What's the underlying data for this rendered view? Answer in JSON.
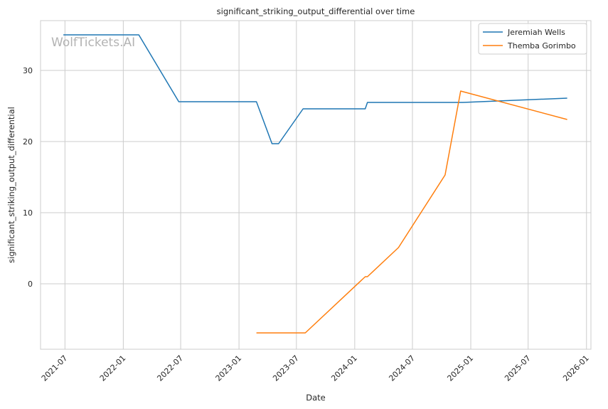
{
  "chart_data": {
    "type": "line",
    "title": "significant_striking_output_differential over time",
    "xlabel": "Date",
    "ylabel": "significant_striking_output_differential",
    "watermark": "WolfTickets.AI",
    "grid": true,
    "legend_position": "top-right",
    "xlim": [
      "2021-04-15",
      "2026-01-15"
    ],
    "ylim": [
      -9.2,
      37.0
    ],
    "x_ticks": [
      "2021-07-01",
      "2022-01-01",
      "2022-07-01",
      "2023-01-01",
      "2023-07-01",
      "2024-01-01",
      "2024-07-01",
      "2025-01-01",
      "2025-07-01",
      "2026-01-01"
    ],
    "x_tick_labels": [
      "2021-07",
      "2022-01",
      "2022-07",
      "2023-01",
      "2023-07",
      "2024-01",
      "2024-07",
      "2025-01",
      "2025-07",
      "2026-01"
    ],
    "y_ticks": [
      0,
      10,
      20,
      30
    ],
    "y_tick_labels": [
      "0",
      "10",
      "20",
      "30"
    ],
    "series": [
      {
        "name": "Jeremiah Wells",
        "color": "#1f77b4",
        "points": [
          {
            "x": "2021-06-26",
            "y": 35.0
          },
          {
            "x": "2022-02-19",
            "y": 35.0
          },
          {
            "x": "2022-06-25",
            "y": 25.6
          },
          {
            "x": "2023-02-25",
            "y": 25.6
          },
          {
            "x": "2023-04-15",
            "y": 19.7
          },
          {
            "x": "2023-05-06",
            "y": 19.7
          },
          {
            "x": "2023-07-22",
            "y": 24.6
          },
          {
            "x": "2024-02-03",
            "y": 24.6
          },
          {
            "x": "2024-02-10",
            "y": 25.5
          },
          {
            "x": "2024-12-07",
            "y": 25.5
          },
          {
            "x": "2025-11-01",
            "y": 26.1
          }
        ]
      },
      {
        "name": "Themba Gorimbo",
        "color": "#ff7f0e",
        "points": [
          {
            "x": "2023-02-25",
            "y": -6.9
          },
          {
            "x": "2023-07-29",
            "y": -6.9
          },
          {
            "x": "2024-02-03",
            "y": 1.0
          },
          {
            "x": "2024-02-10",
            "y": 1.0
          },
          {
            "x": "2024-05-18",
            "y": 5.1
          },
          {
            "x": "2024-10-12",
            "y": 15.3
          },
          {
            "x": "2024-11-30",
            "y": 27.1
          },
          {
            "x": "2025-11-01",
            "y": 23.1
          }
        ]
      }
    ]
  }
}
